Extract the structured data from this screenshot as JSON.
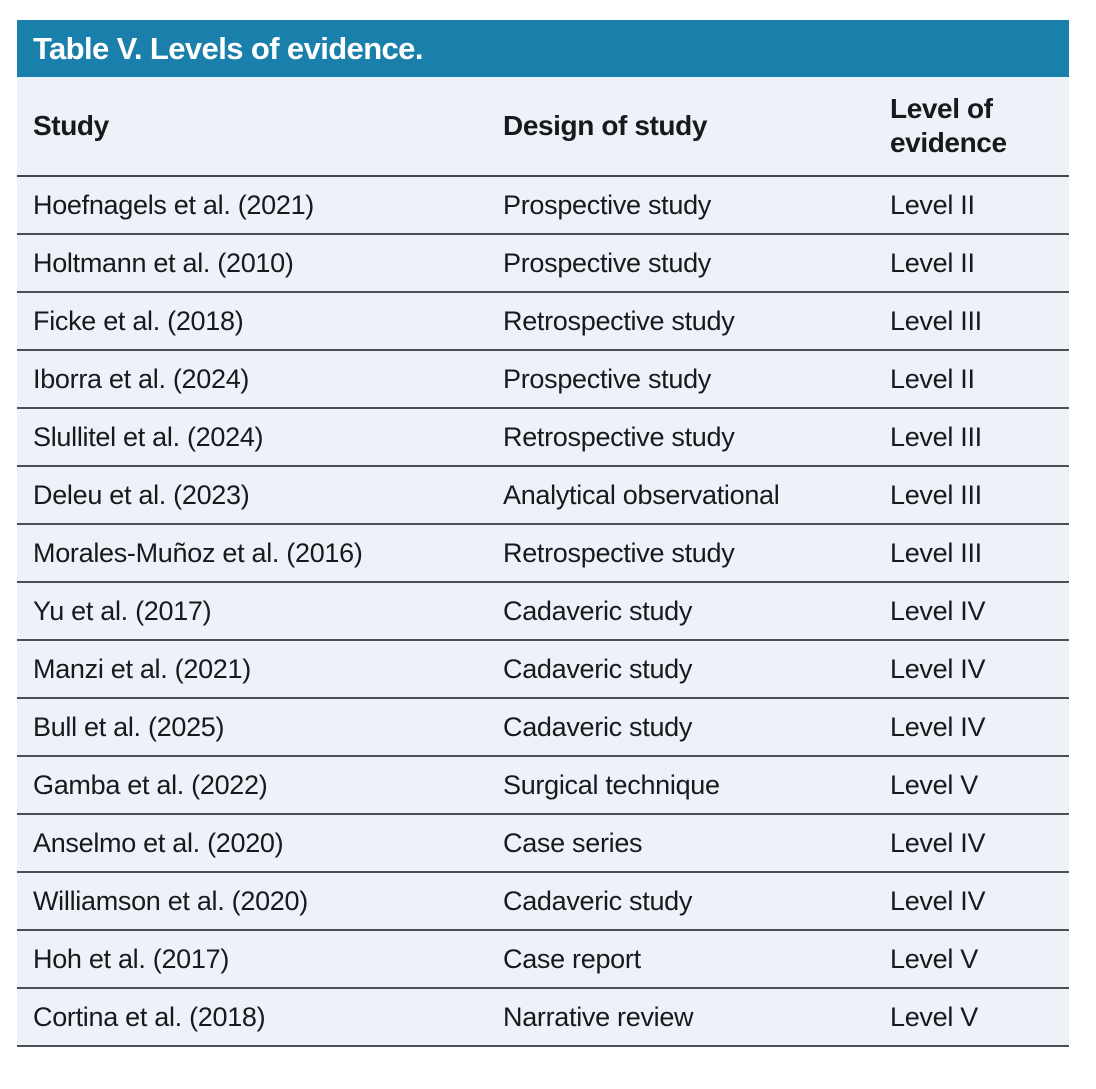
{
  "table": {
    "title": "Table V. Levels of evidence.",
    "columns": [
      "Study",
      "Design of study",
      "Level of evidence"
    ],
    "rows": [
      {
        "study": "Hoefnagels et al. (2021)",
        "design": "Prospective study",
        "level": "Level II"
      },
      {
        "study": "Holtmann et al. (2010)",
        "design": "Prospective study",
        "level": "Level II"
      },
      {
        "study": "Ficke et al. (2018)",
        "design": "Retrospective study",
        "level": "Level III"
      },
      {
        "study": "Iborra et al. (2024)",
        "design": "Prospective study",
        "level": "Level II"
      },
      {
        "study": "Slullitel et al. (2024)",
        "design": "Retrospective study",
        "level": "Level III"
      },
      {
        "study": "Deleu et al. (2023)",
        "design": "Analytical observational",
        "level": "Level III"
      },
      {
        "study": "Morales-Muñoz et al. (2016)",
        "design": "Retrospective study",
        "level": "Level III"
      },
      {
        "study": "Yu et al. (2017)",
        "design": "Cadaveric study",
        "level": "Level IV"
      },
      {
        "study": "Manzi et al. (2021)",
        "design": "Cadaveric study",
        "level": "Level IV"
      },
      {
        "study": "Bull et al. (2025)",
        "design": "Cadaveric study",
        "level": "Level IV"
      },
      {
        "study": "Gamba et al. (2022)",
        "design": "Surgical technique",
        "level": "Level V"
      },
      {
        "study": "Anselmo et al. (2020)",
        "design": "Case series",
        "level": "Level IV"
      },
      {
        "study": "Williamson et al. (2020)",
        "design": "Cadaveric study",
        "level": "Level IV"
      },
      {
        "study": "Hoh et al. (2017)",
        "design": "Case report",
        "level": "Level V"
      },
      {
        "study": "Cortina et al. (2018)",
        "design": "Narrative review",
        "level": "Level V"
      }
    ]
  },
  "colors": {
    "header_bg": "#1b7fab",
    "row_bg": "#edf1f8",
    "separator": "#4b4f55",
    "title_text": "#ffffff",
    "body_text": "#17191c"
  }
}
